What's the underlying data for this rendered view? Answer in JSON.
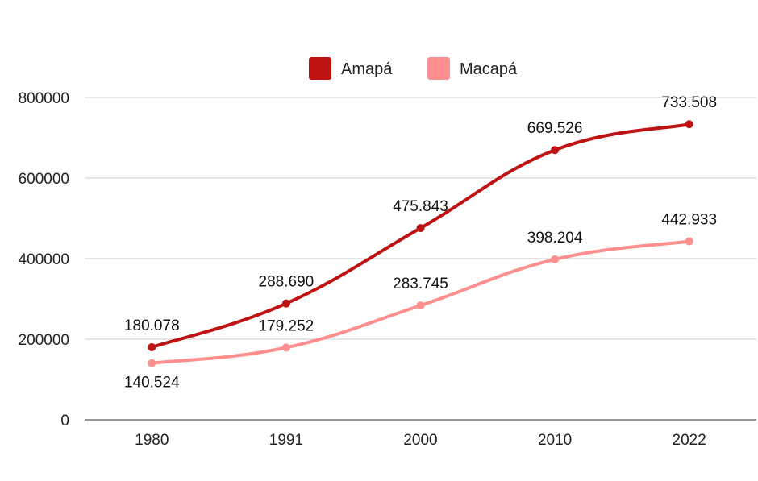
{
  "chart_data": {
    "type": "line",
    "categories": [
      "1980",
      "1991",
      "2000",
      "2010",
      "2022"
    ],
    "series": [
      {
        "name": "Amapá",
        "values": [
          180078,
          288690,
          475843,
          669526,
          733508
        ],
        "labels": [
          "180.078",
          "288.690",
          "475.843",
          "669.526",
          "733.508"
        ],
        "color": "#bf1212"
      },
      {
        "name": "Macapá",
        "values": [
          140524,
          179252,
          283745,
          398204,
          442933
        ],
        "labels": [
          "140.524",
          "179.252",
          "283.745",
          "398.204",
          "442.933"
        ],
        "color": "#ff8f8f"
      }
    ],
    "y_ticks": [
      "0",
      "200000",
      "400000",
      "600000",
      "800000"
    ],
    "ylim": [
      0,
      800000
    ],
    "grid": true,
    "legend_position": "top-center",
    "title": "",
    "xlabel": "",
    "ylabel": ""
  }
}
